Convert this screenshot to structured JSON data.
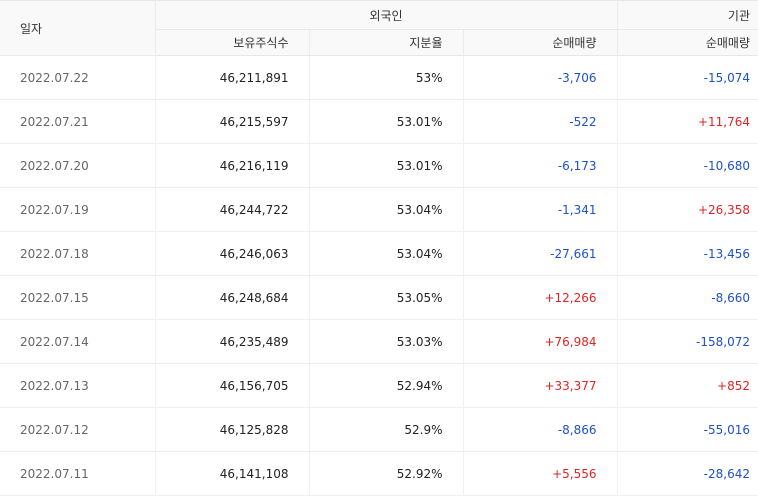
{
  "header": {
    "date": "일자",
    "foreign": "외국인",
    "institution": "기관",
    "shares_held": "보유주식수",
    "holding_ratio": "지분율",
    "foreign_net": "순매매량",
    "inst_net": "순매매량"
  },
  "rows": [
    {
      "date": "2022.07.22",
      "shares": "46,211,891",
      "ratio": "53%",
      "foreign_net": "-3,706",
      "inst_net": "-15,074"
    },
    {
      "date": "2022.07.21",
      "shares": "46,215,597",
      "ratio": "53.01%",
      "foreign_net": "-522",
      "inst_net": "+11,764"
    },
    {
      "date": "2022.07.20",
      "shares": "46,216,119",
      "ratio": "53.01%",
      "foreign_net": "-6,173",
      "inst_net": "-10,680"
    },
    {
      "date": "2022.07.19",
      "shares": "46,244,722",
      "ratio": "53.04%",
      "foreign_net": "-1,341",
      "inst_net": "+26,358"
    },
    {
      "date": "2022.07.18",
      "shares": "46,246,063",
      "ratio": "53.04%",
      "foreign_net": "-27,661",
      "inst_net": "-13,456"
    },
    {
      "date": "2022.07.15",
      "shares": "46,248,684",
      "ratio": "53.05%",
      "foreign_net": "+12,266",
      "inst_net": "-8,660"
    },
    {
      "date": "2022.07.14",
      "shares": "46,235,489",
      "ratio": "53.03%",
      "foreign_net": "+76,984",
      "inst_net": "-158,072"
    },
    {
      "date": "2022.07.13",
      "shares": "46,156,705",
      "ratio": "52.94%",
      "foreign_net": "+33,377",
      "inst_net": "+852"
    },
    {
      "date": "2022.07.12",
      "shares": "46,125,828",
      "ratio": "52.9%",
      "foreign_net": "-8,866",
      "inst_net": "-55,016"
    },
    {
      "date": "2022.07.11",
      "shares": "46,141,108",
      "ratio": "52.92%",
      "foreign_net": "+5,556",
      "inst_net": "-28,642"
    }
  ],
  "colors": {
    "negative": "#1e50c8",
    "positive": "#e02424"
  }
}
